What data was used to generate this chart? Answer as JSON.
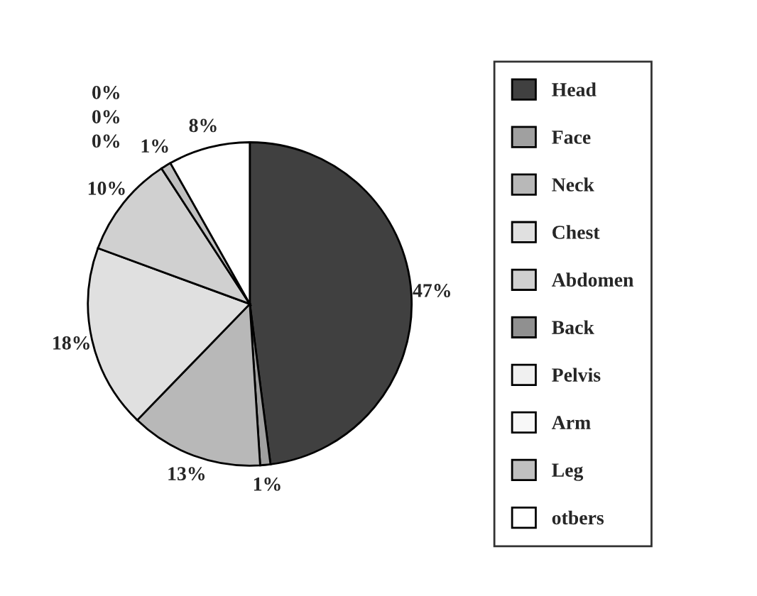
{
  "chart_data": {
    "type": "pie",
    "categories": [
      "Head",
      "Face",
      "Neck",
      "Chest",
      "Abdomen",
      "Back",
      "Pelvis",
      "Arm",
      "Leg",
      "otbers"
    ],
    "values": [
      47,
      1,
      13,
      18,
      10,
      0,
      0,
      0,
      1,
      8
    ],
    "colors": [
      "#404040",
      "#a0a0a0",
      "#b8b8b8",
      "#e0e0e0",
      "#d0d0d0",
      "#909090",
      "#f0f0f0",
      "#f8f8f8",
      "#c0c0c0",
      "#ffffff"
    ],
    "value_labels": [
      "47%",
      "1%",
      "13%",
      "18%",
      "10%",
      "0%",
      "0%",
      "0%",
      "1%",
      "8%"
    ],
    "legend": "right"
  }
}
